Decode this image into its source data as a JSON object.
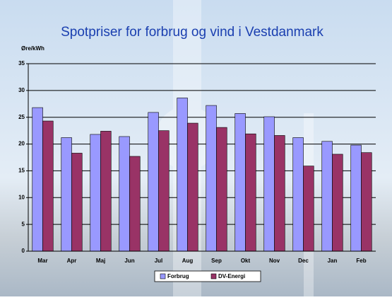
{
  "chart_data": {
    "type": "bar",
    "title": "Spotpriser for forbrug og vind i Vestdanmark",
    "y_label": "Øre/kWh",
    "categories": [
      "Mar",
      "Apr",
      "Maj",
      "Jun",
      "Jul",
      "Aug",
      "Sep",
      "Okt",
      "Nov",
      "Dec",
      "Jan",
      "Feb"
    ],
    "series": [
      {
        "name": "Forbrug",
        "color": "#9999ff",
        "values": [
          26.8,
          21.2,
          21.8,
          21.4,
          25.9,
          28.6,
          27.2,
          25.7,
          25.1,
          21.2,
          20.5,
          19.8
        ]
      },
      {
        "name": "DV-Energi",
        "color": "#993366",
        "values": [
          24.3,
          18.3,
          22.4,
          17.7,
          22.5,
          23.9,
          23.1,
          21.9,
          21.6,
          15.9,
          18.1,
          18.4
        ]
      }
    ],
    "ylim": [
      0,
      35
    ],
    "yticks": [
      0,
      5,
      10,
      15,
      20,
      25,
      30,
      35
    ],
    "grid": true,
    "legend": "bottom"
  }
}
